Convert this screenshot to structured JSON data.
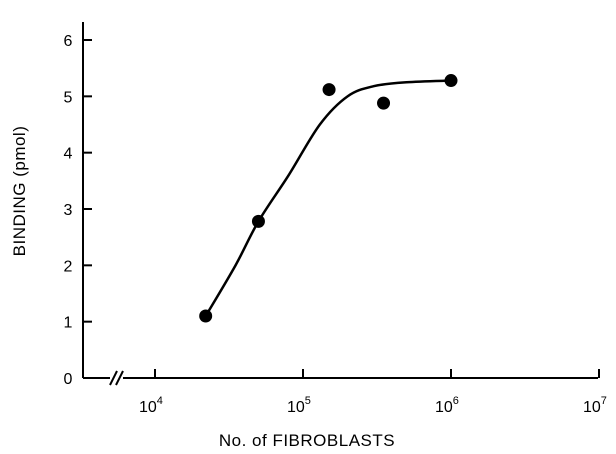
{
  "chart_data": {
    "type": "scatter",
    "title": "",
    "xlabel": "No. of FIBROBLASTS",
    "ylabel": "BINDING (pmol)",
    "x_scale": "log",
    "x_axis_break": true,
    "xlim": [
      1000,
      10000000
    ],
    "ylim": [
      0,
      6
    ],
    "grid": false,
    "x_ticks": [
      {
        "value": 10000,
        "base": "10",
        "exp": "4"
      },
      {
        "value": 100000,
        "base": "10",
        "exp": "5"
      },
      {
        "value": 1000000,
        "base": "10",
        "exp": "6"
      },
      {
        "value": 10000000,
        "base": "10",
        "exp": "7"
      }
    ],
    "y_ticks": [
      "0",
      "1",
      "2",
      "3",
      "4",
      "5",
      "6"
    ],
    "series": [
      {
        "points": [
          {
            "x": 22000,
            "y": 1.1
          },
          {
            "x": 50000,
            "y": 2.78
          },
          {
            "x": 150000,
            "y": 5.12
          },
          {
            "x": 350000,
            "y": 4.88
          },
          {
            "x": 1000000,
            "y": 5.28
          }
        ],
        "fit_curve": [
          {
            "x": 22000,
            "y": 1.1
          },
          {
            "x": 35000,
            "y": 2.0
          },
          {
            "x": 50000,
            "y": 2.78
          },
          {
            "x": 80000,
            "y": 3.6
          },
          {
            "x": 130000,
            "y": 4.5
          },
          {
            "x": 200000,
            "y": 5.0
          },
          {
            "x": 300000,
            "y": 5.18
          },
          {
            "x": 500000,
            "y": 5.25
          },
          {
            "x": 1000000,
            "y": 5.28
          }
        ]
      }
    ]
  }
}
